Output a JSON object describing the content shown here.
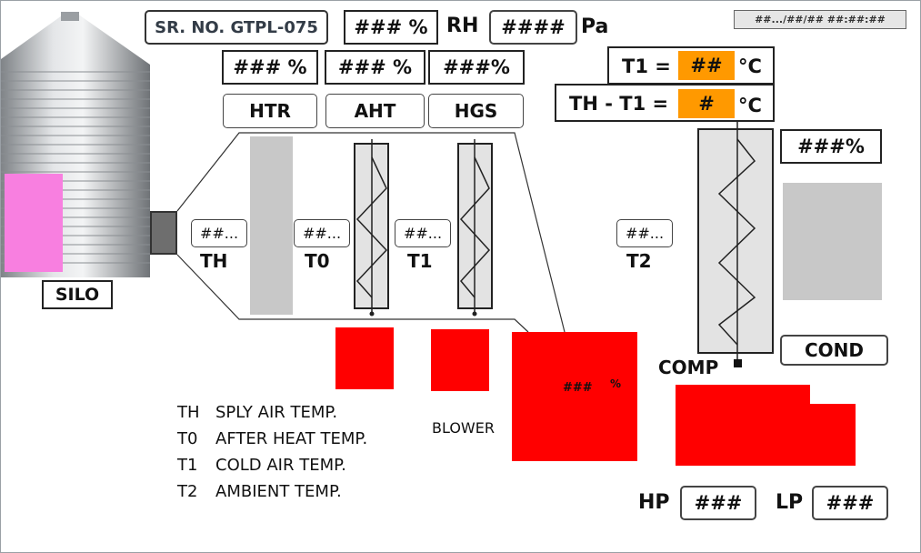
{
  "header": {
    "serial": "SR. NO. GTPL-075",
    "rh_value": "### %",
    "rh_label": "RH",
    "pa_value": "####",
    "pa_label": "Pa",
    "datetime": "##.../##/## ##:##:##"
  },
  "top_percents": {
    "htr": "### %",
    "aht": "### %",
    "hgs": "###%"
  },
  "units": {
    "htr": "HTR",
    "aht": "AHT",
    "hgs": "HGS"
  },
  "silo": {
    "label": "SILO"
  },
  "temps": {
    "th": {
      "value": "##...",
      "label": "TH"
    },
    "t0": {
      "value": "##...",
      "label": "T0"
    },
    "t1": {
      "value": "##...",
      "label": "T1"
    },
    "t2": {
      "value": "##...",
      "label": "T2"
    }
  },
  "t1_readout": {
    "prefix": "T1 =",
    "value": "##",
    "unit": "°C"
  },
  "diff_readout": {
    "prefix": "TH - T1 =",
    "value": "#",
    "unit": "°C"
  },
  "cond": {
    "percent": "###%",
    "label": "COND"
  },
  "comp": {
    "label": "COMP"
  },
  "blower": {
    "label": "BLOWER",
    "value": "###",
    "unit": "%"
  },
  "pressure": {
    "hp_label": "HP",
    "hp_value": "###",
    "lp_label": "LP",
    "lp_value": "###"
  },
  "legend": [
    {
      "key": "TH",
      "text": "SPLY AIR TEMP."
    },
    {
      "key": "T0",
      "text": "AFTER HEAT TEMP."
    },
    {
      "key": "T1",
      "text": "COLD AIR TEMP."
    },
    {
      "key": "T2",
      "text": "AMBIENT TEMP."
    }
  ],
  "colors": {
    "alarm": "#ff0000",
    "highlight": "#ff9900",
    "panel": "#c8c8c8"
  }
}
